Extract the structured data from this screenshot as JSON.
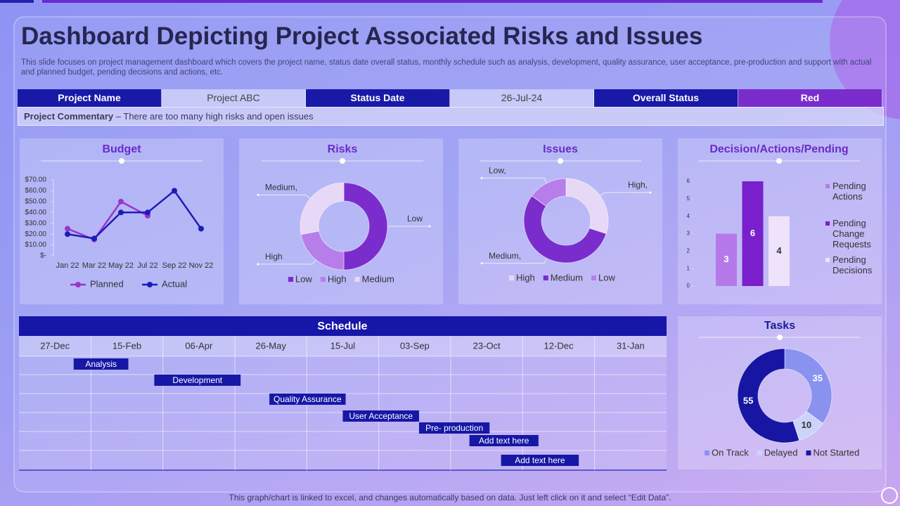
{
  "title": "Dashboard Depicting Project Associated Risks and Issues",
  "subtitle": "This slide focuses on project management dashboard which covers the project name, status date overall status, monthly schedule such as analysis, development, quality assurance, user acceptance, pre-production and support with actual and planned budget, pending decisions and actions, etc.",
  "status": {
    "cells": [
      "Project Name",
      "Project ABC",
      "Status Date",
      "26-Jul-24",
      "Overall Status",
      "Red"
    ]
  },
  "commentary": {
    "label": "Project Commentary",
    "text": "– There are too many high risks and open issues"
  },
  "footer": "This graph/chart is linked to excel, and changes automatically based on data. Just left click on it and select “Edit Data”.",
  "chart_data": [
    {
      "type": "line",
      "title": "Budget",
      "categories": [
        "Jan 22",
        "Mar 22",
        "May 22",
        "Jul 22",
        "Sep 22",
        "Nov 22"
      ],
      "series": [
        {
          "name": "Planned",
          "color": "#9b35c9",
          "values": [
            25,
            15,
            50,
            37,
            null,
            null
          ]
        },
        {
          "name": "Actual",
          "color": "#1c1cb8",
          "values": [
            20,
            16,
            40,
            40,
            60,
            25
          ]
        }
      ],
      "ylim": [
        0,
        70
      ],
      "yticks": [
        {
          "value": 0,
          "label": "$-"
        },
        {
          "value": 10,
          "label": "$10.00"
        },
        {
          "value": 20,
          "label": "$20.00"
        },
        {
          "value": 30,
          "label": "$30.00"
        },
        {
          "value": 40,
          "label": "$40.00"
        },
        {
          "value": 50,
          "label": "$50.00"
        },
        {
          "value": 60,
          "label": "$60.00"
        },
        {
          "value": 70,
          "label": "$70.00"
        }
      ]
    },
    {
      "type": "donut",
      "title": "Risks",
      "categories": [
        "Low",
        "High",
        "Medium"
      ],
      "values": [
        50,
        22,
        28
      ],
      "slice_labels": [
        "Low",
        "High",
        "Medium,"
      ],
      "colors": [
        "#7a2ccc",
        "#b77ee9",
        "#e8d8f7"
      ]
    },
    {
      "type": "donut",
      "title": "Issues",
      "categories": [
        "High",
        "Medium",
        "Low"
      ],
      "values": [
        30,
        55,
        15
      ],
      "slice_labels": [
        "High,",
        "Medium,",
        "Low,"
      ],
      "colors": [
        "#e8d8f7",
        "#7a2ccc",
        "#b77ee9"
      ]
    },
    {
      "type": "bar",
      "title": "Decision/Actions/Pending",
      "categories": [
        "Pending Actions",
        "Pending Change Requests",
        "Pending Decisions"
      ],
      "values": [
        3,
        6,
        4
      ],
      "colors": [
        "#b679ea",
        "#7a1fcc",
        "#efe3fb"
      ],
      "ylim": [
        0,
        6
      ],
      "yticks": [
        0,
        1,
        2,
        3,
        4,
        5,
        6
      ]
    },
    {
      "type": "gantt",
      "title": "Schedule",
      "xlim": [
        -25,
        425
      ],
      "xticks": [
        {
          "value": 0,
          "label": "27-Dec"
        },
        {
          "value": 50,
          "label": "15-Feb"
        },
        {
          "value": 100,
          "label": "06-Apr"
        },
        {
          "value": 150,
          "label": "26-May"
        },
        {
          "value": 200,
          "label": "15-Jul"
        },
        {
          "value": 250,
          "label": "03-Sep"
        },
        {
          "value": 300,
          "label": "23-Oct"
        },
        {
          "value": 350,
          "label": "12-Dec"
        },
        {
          "value": 400,
          "label": "31-Jan"
        }
      ],
      "color": "#1717a6",
      "tasks": [
        {
          "name": "Analysis",
          "start": 13,
          "end": 51
        },
        {
          "name": "Development",
          "start": 69,
          "end": 129
        },
        {
          "name": "Quality Assurance",
          "start": 149,
          "end": 202
        },
        {
          "name": "User Acceptance",
          "start": 200,
          "end": 253
        },
        {
          "name": "Pre- production",
          "start": 253,
          "end": 302
        },
        {
          "name": "Add text here",
          "start": 288,
          "end": 336
        },
        {
          "name": "Add text here",
          "start": 310,
          "end": 364
        }
      ]
    },
    {
      "type": "donut",
      "title": "Tasks",
      "categories": [
        "On Track",
        "Delayed",
        "Not Started"
      ],
      "values": [
        35,
        10,
        55
      ],
      "colors": [
        "#8a92f0",
        "#ccd3fa",
        "#1616a2"
      ]
    }
  ]
}
